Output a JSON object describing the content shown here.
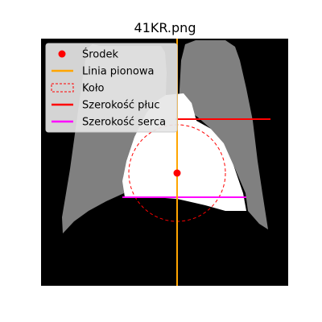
{
  "title": "41KR.png",
  "colors": {
    "image_background": "#000000",
    "lung_fill": "#808080",
    "heart_fill": "#ffffff",
    "center_marker": "#ff0000",
    "vertical_line": "#ffa500",
    "circle": "#ff0000",
    "lung_width_line": "#ff0000",
    "heart_width_line": "#ff00ff",
    "legend_background": "#e6e6e6",
    "legend_border": "#cccccc"
  },
  "legend": {
    "placement": "top-left",
    "items": [
      {
        "label": "Środek",
        "symbol": "dot",
        "color": "#ff0000"
      },
      {
        "label": "Linia pionowa",
        "symbol": "line",
        "color": "#ffa500"
      },
      {
        "label": "Koło",
        "symbol": "dashed-rect",
        "color": "#ff0000"
      },
      {
        "label": "Szerokość płuc",
        "symbol": "line",
        "color": "#ff0000"
      },
      {
        "label": "Szerokość serca",
        "symbol": "line",
        "color": "#ff00ff"
      }
    ]
  }
}
